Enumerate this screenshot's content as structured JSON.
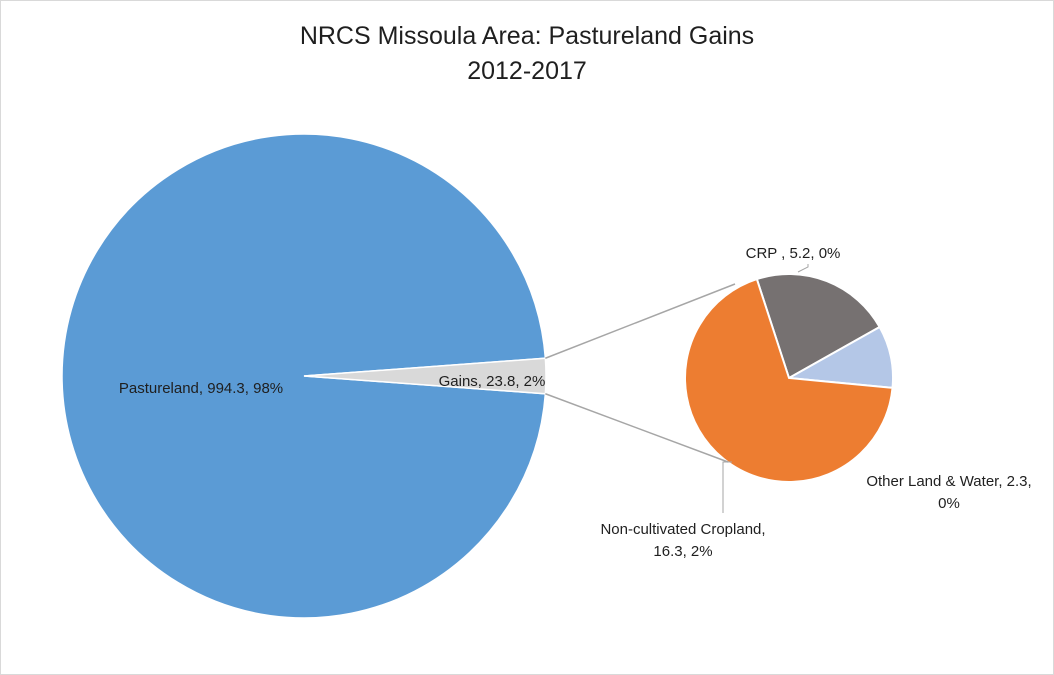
{
  "chart_data": {
    "type": "pie",
    "subtype": "pie-of-pie",
    "title": [
      "NRCS Missoula Area: Pastureland Gains",
      "2012-2017"
    ],
    "main_pie": {
      "slices": [
        {
          "name": "Pastureland",
          "value": 994.3,
          "percent": "98%",
          "label": "Pastureland, 994.3, 98%",
          "color": "#5b9bd5"
        },
        {
          "name": "Gains",
          "value": 23.8,
          "percent": "2%",
          "label": "Gains, 23.8, 2%",
          "color": "#d9d9d9"
        }
      ]
    },
    "secondary_pie": {
      "source_slice": "Gains",
      "slices": [
        {
          "name": "CRP",
          "value": 5.2,
          "percent": "0%",
          "label": [
            "CRP , 5.2, 0%"
          ],
          "color": "#767171"
        },
        {
          "name": "Other Land & Water",
          "value": 2.3,
          "percent": "0%",
          "label": [
            "Other Land & Water, 2.3,",
            "0%"
          ],
          "color": "#b4c7e7"
        },
        {
          "name": "Non-cultivated Cropland",
          "value": 16.3,
          "percent": "2%",
          "label": [
            "Non-cultivated Cropland,",
            "16.3, 2%"
          ],
          "color": "#ed7d31"
        }
      ]
    },
    "legend": "none"
  }
}
